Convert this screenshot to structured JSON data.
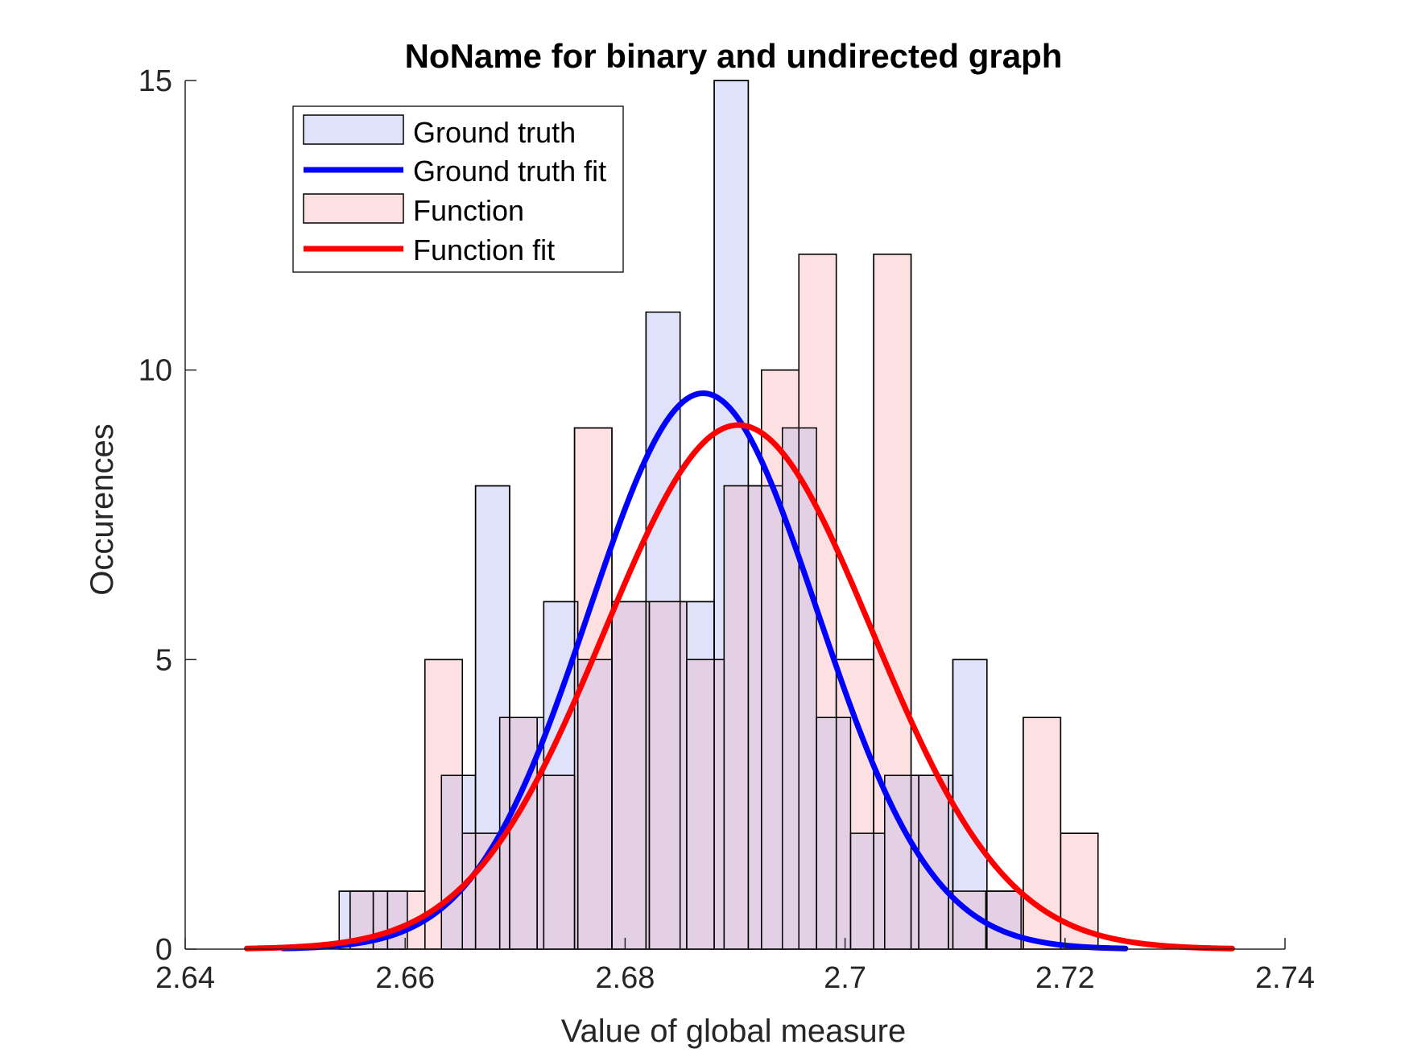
{
  "chart_data": {
    "type": "bar",
    "title": "NoName for binary and undirected graph",
    "xlabel": "Value of global measure",
    "ylabel": "Occurences",
    "xlim": [
      2.64,
      2.74
    ],
    "ylim": [
      0,
      15
    ],
    "xticks": [
      2.64,
      2.66,
      2.68,
      2.7,
      2.72,
      2.74
    ],
    "xtick_labels": [
      "2.64",
      "2.66",
      "2.68",
      "2.7",
      "2.72",
      "2.74"
    ],
    "yticks": [
      0,
      5,
      10,
      15
    ],
    "ytick_labels": [
      "0",
      "5",
      "10",
      "15"
    ],
    "legend_position": "top-left",
    "series": [
      {
        "name": "Ground truth",
        "kind": "histogram",
        "color": "#e0e2fa",
        "bin_edges": [
          2.654,
          2.6571,
          2.6602,
          2.6633,
          2.6664,
          2.6695,
          2.6726,
          2.6757,
          2.6788,
          2.6819,
          2.685,
          2.6881,
          2.6912,
          2.6943,
          2.6974,
          2.7005,
          2.7036,
          2.7067,
          2.7098,
          2.7129,
          2.716
        ],
        "values": [
          1,
          1,
          0,
          3,
          8,
          4,
          6,
          5,
          6,
          11,
          6,
          15,
          8,
          9,
          4,
          2,
          3,
          3,
          5,
          1
        ]
      },
      {
        "name": "Ground truth fit",
        "kind": "normal-fit",
        "color": "#0000ff",
        "mean": 2.6871,
        "peak": 9.6,
        "range": [
          2.6489,
          2.7255
        ]
      },
      {
        "name": "Function",
        "kind": "histogram",
        "color": "#fde0e2",
        "bin_edges": [
          2.655,
          2.6584,
          2.6618,
          2.6652,
          2.6686,
          2.672,
          2.6754,
          2.6788,
          2.6822,
          2.6856,
          2.689,
          2.6924,
          2.6958,
          2.6992,
          2.7026,
          2.706,
          2.7094,
          2.7128,
          2.7162,
          2.7196,
          2.723
        ],
        "values": [
          1,
          1,
          5,
          2,
          4,
          3,
          9,
          6,
          6,
          5,
          8,
          10,
          12,
          5,
          12,
          3,
          1,
          1,
          4,
          2
        ]
      },
      {
        "name": "Function fit",
        "kind": "normal-fit",
        "color": "#ff0000",
        "mean": 2.6903,
        "peak": 9.05,
        "range": [
          2.6456,
          2.7352
        ]
      }
    ]
  },
  "legend": {
    "items": [
      {
        "label": "Ground truth",
        "swatch": "patch",
        "color": "#e0e2fa"
      },
      {
        "label": "Ground truth fit",
        "swatch": "line",
        "color": "#0000ff"
      },
      {
        "label": "Function",
        "swatch": "patch",
        "color": "#fde0e2"
      },
      {
        "label": "Function fit",
        "swatch": "line",
        "color": "#ff0000"
      }
    ]
  },
  "colors": {
    "overlap": "#e4d0e4",
    "edge": "#000000",
    "axis": "#262626"
  }
}
